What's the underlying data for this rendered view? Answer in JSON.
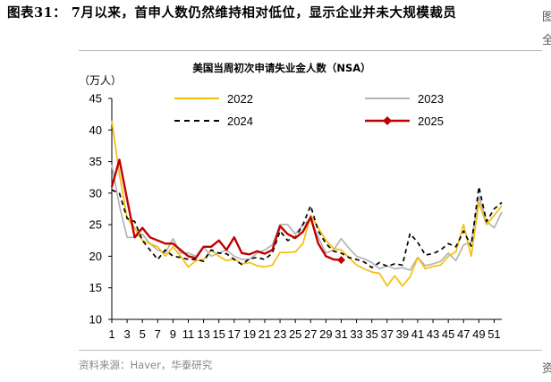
{
  "figure": {
    "title": "图表31： 7月以来，首申人数仍然维持相对低位，显示企业并未大规模裁员",
    "source": "资料来源：Haver，华泰研究",
    "edge_text_top": "图",
    "edge_text_mid": "全",
    "edge_text_bottom": "资"
  },
  "chart_data": {
    "type": "line",
    "title": "美国当周初次申请失业金人数（NSA）",
    "ylabel": "（万人）",
    "xlabel": "",
    "ylim": [
      10,
      45
    ],
    "yticks": [
      10,
      15,
      20,
      25,
      30,
      35,
      40,
      45
    ],
    "xlim": [
      1,
      52
    ],
    "xticks": [
      1,
      3,
      5,
      7,
      9,
      11,
      13,
      15,
      17,
      19,
      21,
      23,
      25,
      27,
      29,
      31,
      33,
      35,
      37,
      39,
      41,
      43,
      45,
      47,
      49,
      51
    ],
    "grid": false,
    "legend_position": "top",
    "series": [
      {
        "name": "2022",
        "color": "#F5BE0B",
        "dash": "solid",
        "x": [
          1,
          2,
          3,
          4,
          5,
          6,
          7,
          8,
          9,
          10,
          11,
          12,
          13,
          14,
          15,
          16,
          17,
          18,
          19,
          20,
          21,
          22,
          23,
          24,
          25,
          26,
          27,
          28,
          29,
          30,
          31,
          32,
          33,
          34,
          35,
          36,
          37,
          38,
          39,
          40,
          41,
          42,
          43,
          44,
          45,
          46,
          47,
          48,
          49,
          50,
          51,
          52
        ],
        "values": [
          41.5,
          33,
          26,
          24.5,
          22.5,
          22,
          21.5,
          20,
          21.5,
          20,
          18.3,
          19.3,
          19.5,
          21,
          20,
          19.3,
          19.6,
          18.8,
          19,
          18.5,
          18.3,
          18.6,
          20.6,
          20.6,
          20.7,
          22,
          26.5,
          24.5,
          22.5,
          21.2,
          21,
          19.8,
          18.6,
          18,
          17.5,
          17.3,
          15.3,
          16.9,
          15.3,
          16.7,
          19.8,
          18,
          18.4,
          18.6,
          20,
          20.7,
          25,
          20,
          28.5,
          25,
          26.5,
          28
        ]
      },
      {
        "name": "2023",
        "color": "#B4B4B4",
        "dash": "solid",
        "x": [
          1,
          2,
          3,
          4,
          5,
          6,
          7,
          8,
          9,
          10,
          11,
          12,
          13,
          14,
          15,
          16,
          17,
          18,
          19,
          20,
          21,
          22,
          23,
          24,
          25,
          26,
          27,
          28,
          29,
          30,
          31,
          32,
          33,
          34,
          35,
          36,
          37,
          38,
          39,
          40,
          41,
          42,
          43,
          44,
          45,
          46,
          47,
          48,
          49,
          50,
          51,
          52
        ],
        "values": [
          34.5,
          28,
          23,
          23,
          23.5,
          22,
          21,
          20.5,
          22.8,
          20.5,
          20.5,
          20,
          21.5,
          20,
          20.5,
          21,
          20,
          19.5,
          19.5,
          20.5,
          21,
          21.8,
          25,
          25,
          23.5,
          25,
          25.8,
          23,
          20.5,
          21,
          22.8,
          21.3,
          20,
          19.6,
          19,
          18,
          18.5,
          18,
          18.2,
          17.8,
          19.8,
          18.5,
          18.8,
          19.2,
          20.5,
          19.3,
          21.8,
          22.2,
          29.5,
          25.5,
          24.5,
          27
        ]
      },
      {
        "name": "2024",
        "color": "#000000",
        "dash": "dashed",
        "x": [
          1,
          2,
          3,
          4,
          5,
          6,
          7,
          8,
          9,
          10,
          11,
          12,
          13,
          14,
          15,
          16,
          17,
          18,
          19,
          20,
          21,
          22,
          23,
          24,
          25,
          26,
          27,
          28,
          29,
          30,
          31,
          32,
          33,
          34,
          35,
          36,
          37,
          38,
          39,
          40,
          41,
          42,
          43,
          44,
          45,
          46,
          47,
          48,
          49,
          50,
          51,
          52
        ],
        "values": [
          30.5,
          30,
          26,
          25.5,
          22.5,
          21,
          19.5,
          21,
          20,
          19.8,
          19.5,
          19.5,
          19.2,
          21,
          20.5,
          20.4,
          19.5,
          18.7,
          19.6,
          19.8,
          19.5,
          20.5,
          24,
          22.5,
          23,
          25,
          28,
          24,
          22,
          20.8,
          20.5,
          19.8,
          19.5,
          19.1,
          18.2,
          19,
          18.4,
          18.8,
          18.6,
          23.6,
          22.2,
          20.2,
          20.4,
          21,
          22,
          21.5,
          24,
          21.6,
          31,
          25.5,
          27.5,
          28.5
        ]
      },
      {
        "name": "2025",
        "color": "#C00000",
        "dash": "solid",
        "marker_last": "diamond",
        "x": [
          1,
          2,
          3,
          4,
          5,
          6,
          7,
          8,
          9,
          10,
          11,
          12,
          13,
          14,
          15,
          16,
          17,
          18,
          19,
          20,
          21,
          22,
          23,
          24,
          25,
          26,
          27,
          28,
          29,
          30,
          31
        ],
        "values": [
          31,
          35.3,
          29,
          23,
          24.5,
          23,
          22.5,
          22,
          22,
          21,
          20,
          19.7,
          21.5,
          21.5,
          22.5,
          21,
          23,
          20.5,
          20.3,
          20.8,
          20.4,
          21,
          24.8,
          23.5,
          22.9,
          23.9,
          26.2,
          22,
          20,
          19.5,
          19.4
        ]
      }
    ]
  }
}
